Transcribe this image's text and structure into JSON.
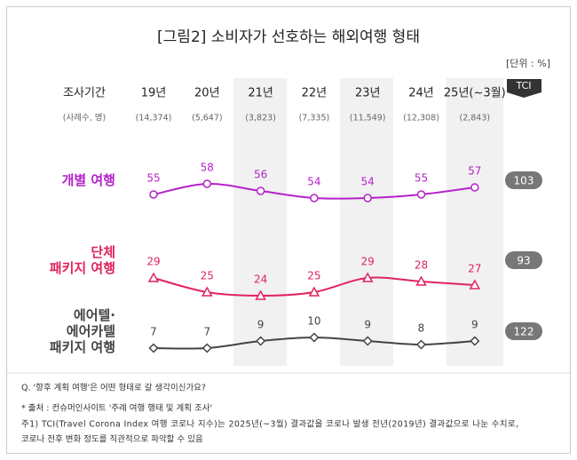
{
  "chart_data": {
    "type": "line",
    "title": "[그림2] 소비자가 선호하는 해외여행 형태",
    "unit": "[단위 : %]",
    "period_label": "조사기간",
    "sample_label": "(사례수, 명)",
    "categories": [
      "19년",
      "20년",
      "21년",
      "22년",
      "23년",
      "24년",
      "25년(~3월)"
    ],
    "samples": [
      "(14,374)",
      "(5,647)",
      "(3,823)",
      "(7,335)",
      "(11,549)",
      "(12,308)",
      "(2,843)"
    ],
    "tci_label": "TCI",
    "series": [
      {
        "name": "개별 여행",
        "color": "#b422c8",
        "marker": "circle",
        "values": [
          55,
          58,
          56,
          54,
          54,
          55,
          57
        ],
        "tci": 103
      },
      {
        "name": "단체\n패키지 여행",
        "color": "#e0245e",
        "marker": "triangle",
        "values": [
          29,
          25,
          24,
          25,
          29,
          28,
          27
        ],
        "tci": 93
      },
      {
        "name": "에어텔·\n에어카텔\n패키지 여행",
        "color": "#444444",
        "marker": "diamond",
        "values": [
          7,
          7,
          9,
          10,
          9,
          8,
          9
        ],
        "tci": 122
      }
    ],
    "notes": [
      "Q. '향후 계획 여행'은 어떤 형태로 갈 생각이신가요?",
      "* 출처 : 컨슈머인사이트 '주례 여행 행태 및 계획 조사'",
      "주1) TCI(Travel Corona Index 여행 코로나 지수)는 2025년(~3월) 결과값을 코로나 발생 전년(2019년) 결과값으로 나눈 수치로,",
      "코로나 전후 변화 정도를 직관적으로 파악할 수 있음"
    ]
  }
}
